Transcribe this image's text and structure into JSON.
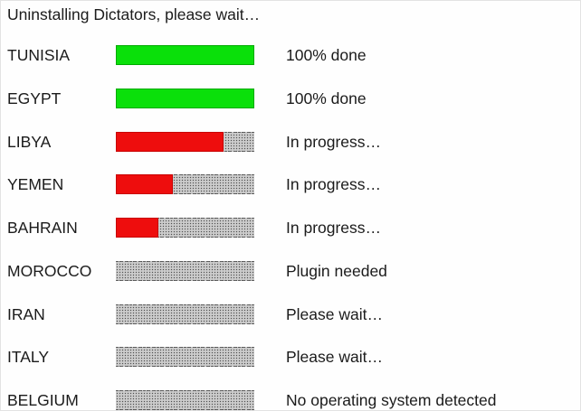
{
  "title": "Uninstalling Dictators, please wait…",
  "colors": {
    "done_fill": "#0ae00a",
    "done_border": "#00aa00",
    "progress_fill": "#ee0d0d",
    "progress_border": "#c80000",
    "dots": "#4f4f4f",
    "text": "#1b1b1b"
  },
  "rows": [
    {
      "country": "TUNISIA",
      "progress_percent": 100,
      "state": "done",
      "status": "100% done"
    },
    {
      "country": "EGYPT",
      "progress_percent": 100,
      "state": "done",
      "status": "100% done"
    },
    {
      "country": "LIBYA",
      "progress_percent": 78,
      "state": "in-progress",
      "status": "In progress…"
    },
    {
      "country": "YEMEN",
      "progress_percent": 41,
      "state": "in-progress",
      "status": "In progress…"
    },
    {
      "country": "BAHRAIN",
      "progress_percent": 31,
      "state": "in-progress",
      "status": "In progress…"
    },
    {
      "country": "MOROCCO",
      "progress_percent": 0,
      "state": "empty",
      "status": "Plugin needed"
    },
    {
      "country": "IRAN",
      "progress_percent": 0,
      "state": "empty",
      "status": "Please wait…"
    },
    {
      "country": "ITALY",
      "progress_percent": 0,
      "state": "empty",
      "status": "Please wait…"
    },
    {
      "country": "BELGIUM",
      "progress_percent": 0,
      "state": "empty",
      "status": "No operating system detected"
    }
  ]
}
